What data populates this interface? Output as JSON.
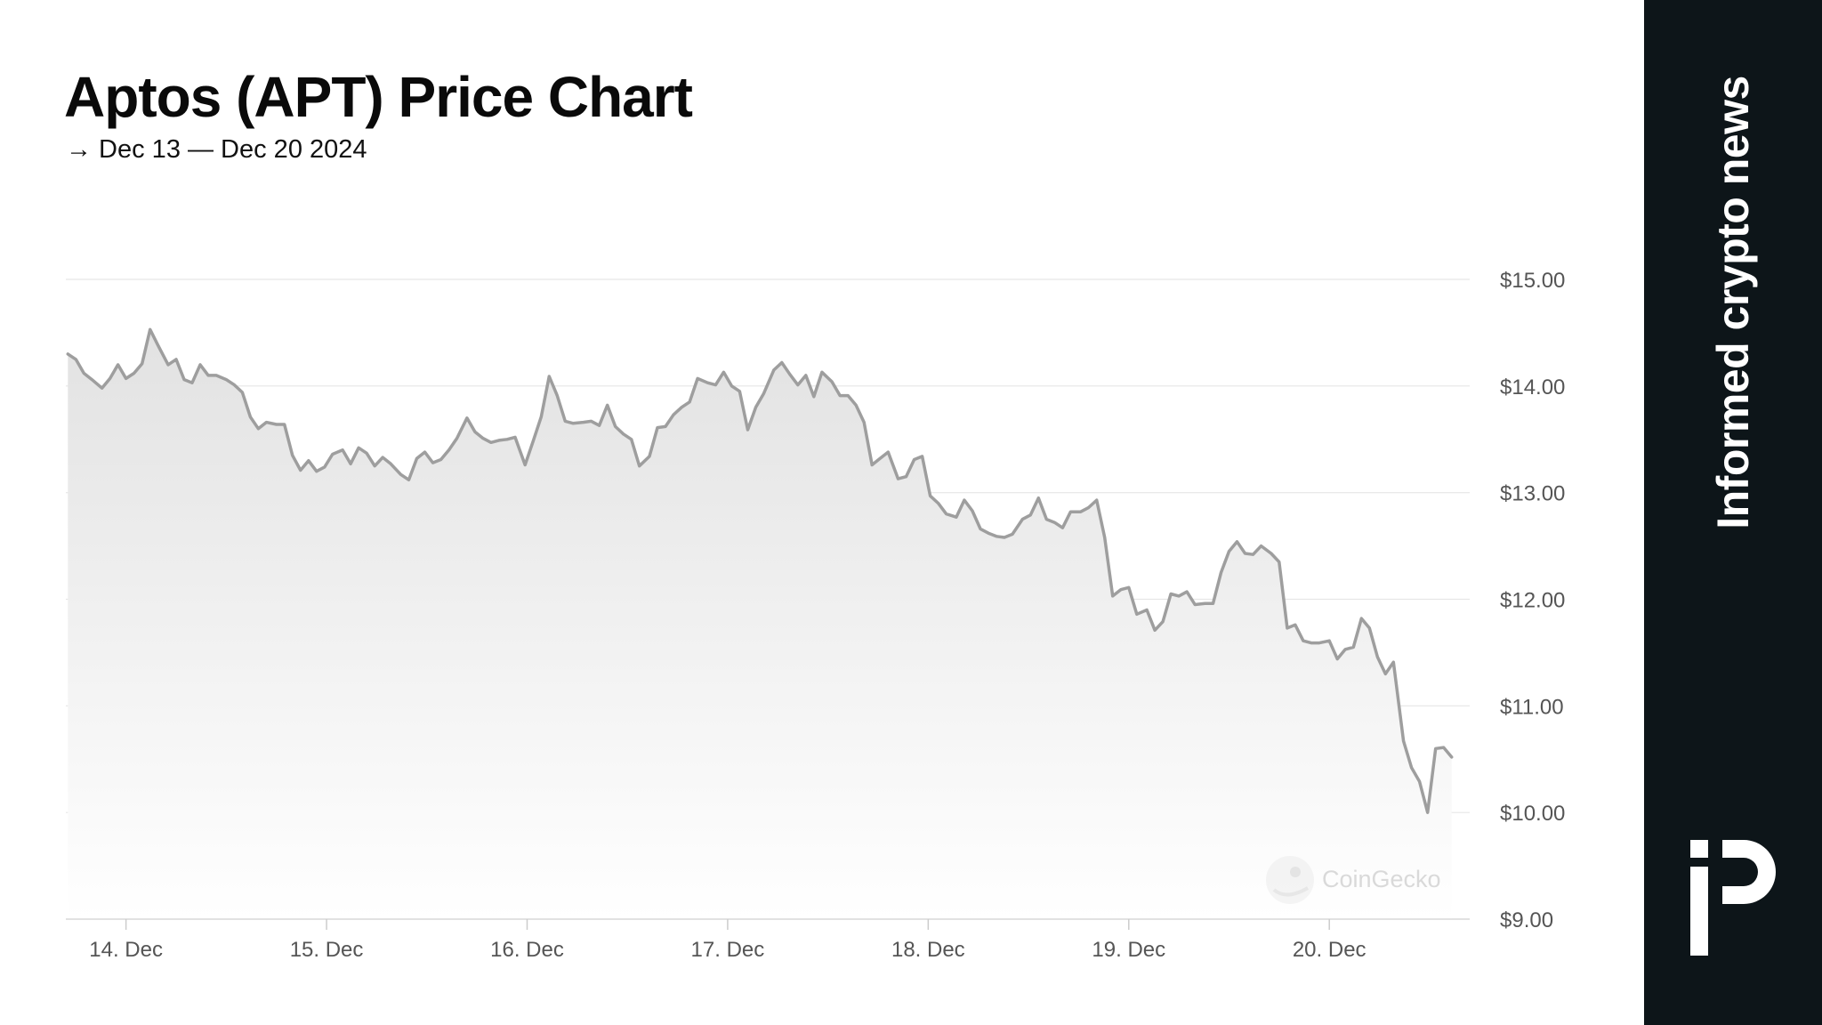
{
  "header": {
    "title": "Aptos (APT) Price Chart",
    "subtitle": "→ Dec 13 — Dec 20 2024"
  },
  "sidebar": {
    "tagline": "Informed crypto news",
    "logo_icon": "brand-monogram-icon"
  },
  "watermark": {
    "text": "CoinGecko",
    "icon": "gecko-icon"
  },
  "colors": {
    "line": "#9e9e9e",
    "grid": "#e6e6e6",
    "sidebar_bg": "#0d1519",
    "axis_text": "#555555"
  },
  "chart_data": {
    "type": "area",
    "title": "Aptos (APT) Price Chart",
    "xlabel": "",
    "ylabel": "",
    "x_range": [
      13.7,
      20.7
    ],
    "ylim": [
      9.0,
      15.0
    ],
    "grid": true,
    "legend": "none",
    "x_ticks": [
      {
        "value": 14,
        "label": "14. Dec"
      },
      {
        "value": 15,
        "label": "15. Dec"
      },
      {
        "value": 16,
        "label": "16. Dec"
      },
      {
        "value": 17,
        "label": "17. Dec"
      },
      {
        "value": 18,
        "label": "18. Dec"
      },
      {
        "value": 19,
        "label": "19. Dec"
      },
      {
        "value": 20,
        "label": "20. Dec"
      }
    ],
    "y_ticks": [
      {
        "value": 15,
        "label": "$15.00"
      },
      {
        "value": 14,
        "label": "$14.00"
      },
      {
        "value": 13,
        "label": "$13.00"
      },
      {
        "value": 12,
        "label": "$12.00"
      },
      {
        "value": 11,
        "label": "$11.00"
      },
      {
        "value": 10,
        "label": "$10.00"
      },
      {
        "value": 9,
        "label": "$9.00"
      }
    ],
    "series": [
      {
        "values": [
          [
            13.71,
            14.3
          ],
          [
            13.75,
            14.25
          ],
          [
            13.79,
            14.12
          ],
          [
            13.83,
            14.06
          ],
          [
            13.88,
            13.98
          ],
          [
            13.92,
            14.07
          ],
          [
            13.96,
            14.2
          ],
          [
            14.0,
            14.07
          ],
          [
            14.04,
            14.12
          ],
          [
            14.08,
            14.21
          ],
          [
            14.12,
            14.53
          ],
          [
            14.16,
            14.38
          ],
          [
            14.21,
            14.2
          ],
          [
            14.25,
            14.25
          ],
          [
            14.29,
            14.06
          ],
          [
            14.33,
            14.03
          ],
          [
            14.37,
            14.2
          ],
          [
            14.41,
            14.1
          ],
          [
            14.45,
            14.1
          ],
          [
            14.5,
            14.06
          ],
          [
            14.54,
            14.01
          ],
          [
            14.58,
            13.94
          ],
          [
            14.62,
            13.71
          ],
          [
            14.66,
            13.6
          ],
          [
            14.7,
            13.66
          ],
          [
            14.75,
            13.64
          ],
          [
            14.79,
            13.64
          ],
          [
            14.83,
            13.35
          ],
          [
            14.87,
            13.21
          ],
          [
            14.91,
            13.3
          ],
          [
            14.95,
            13.2
          ],
          [
            14.99,
            13.24
          ],
          [
            15.03,
            13.36
          ],
          [
            15.08,
            13.4
          ],
          [
            15.12,
            13.27
          ],
          [
            15.16,
            13.42
          ],
          [
            15.2,
            13.37
          ],
          [
            15.24,
            13.25
          ],
          [
            15.28,
            13.33
          ],
          [
            15.32,
            13.27
          ],
          [
            15.37,
            13.17
          ],
          [
            15.41,
            13.12
          ],
          [
            15.45,
            13.32
          ],
          [
            15.49,
            13.38
          ],
          [
            15.53,
            13.28
          ],
          [
            15.57,
            13.31
          ],
          [
            15.61,
            13.4
          ],
          [
            15.65,
            13.51
          ],
          [
            15.7,
            13.7
          ],
          [
            15.74,
            13.57
          ],
          [
            15.78,
            13.51
          ],
          [
            15.82,
            13.47
          ],
          [
            15.86,
            13.49
          ],
          [
            15.9,
            13.5
          ],
          [
            15.94,
            13.52
          ],
          [
            15.99,
            13.26
          ],
          [
            16.03,
            13.48
          ],
          [
            16.07,
            13.71
          ],
          [
            16.11,
            14.09
          ],
          [
            16.15,
            13.91
          ],
          [
            16.19,
            13.67
          ],
          [
            16.23,
            13.65
          ],
          [
            16.28,
            13.66
          ],
          [
            16.32,
            13.67
          ],
          [
            16.36,
            13.63
          ],
          [
            16.4,
            13.82
          ],
          [
            16.44,
            13.62
          ],
          [
            16.48,
            13.55
          ],
          [
            16.52,
            13.5
          ],
          [
            16.56,
            13.25
          ],
          [
            16.61,
            13.34
          ],
          [
            16.65,
            13.61
          ],
          [
            16.69,
            13.62
          ],
          [
            16.73,
            13.73
          ],
          [
            16.77,
            13.8
          ],
          [
            16.81,
            13.85
          ],
          [
            16.85,
            14.07
          ],
          [
            16.9,
            14.03
          ],
          [
            16.94,
            14.01
          ],
          [
            16.98,
            14.13
          ],
          [
            17.02,
            14.0
          ],
          [
            17.06,
            13.95
          ],
          [
            17.1,
            13.59
          ],
          [
            17.14,
            13.8
          ],
          [
            17.18,
            13.93
          ],
          [
            17.23,
            14.15
          ],
          [
            17.27,
            14.22
          ],
          [
            17.31,
            14.11
          ],
          [
            17.35,
            14.01
          ],
          [
            17.39,
            14.1
          ],
          [
            17.43,
            13.9
          ],
          [
            17.47,
            14.13
          ],
          [
            17.52,
            14.04
          ],
          [
            17.56,
            13.91
          ],
          [
            17.6,
            13.91
          ],
          [
            17.64,
            13.82
          ],
          [
            17.68,
            13.66
          ],
          [
            17.72,
            13.26
          ],
          [
            17.76,
            13.32
          ],
          [
            17.8,
            13.38
          ],
          [
            17.85,
            13.13
          ],
          [
            17.89,
            13.15
          ],
          [
            17.93,
            13.31
          ],
          [
            17.97,
            13.34
          ],
          [
            18.01,
            12.97
          ],
          [
            18.05,
            12.9
          ],
          [
            18.09,
            12.8
          ],
          [
            18.14,
            12.77
          ],
          [
            18.18,
            12.93
          ],
          [
            18.22,
            12.83
          ],
          [
            18.26,
            12.66
          ],
          [
            18.3,
            12.62
          ],
          [
            18.34,
            12.59
          ],
          [
            18.38,
            12.58
          ],
          [
            18.42,
            12.61
          ],
          [
            18.47,
            12.75
          ],
          [
            18.51,
            12.79
          ],
          [
            18.55,
            12.95
          ],
          [
            18.59,
            12.75
          ],
          [
            18.63,
            12.72
          ],
          [
            18.67,
            12.67
          ],
          [
            18.71,
            12.82
          ],
          [
            18.76,
            12.82
          ],
          [
            18.8,
            12.86
          ],
          [
            18.84,
            12.93
          ],
          [
            18.88,
            12.58
          ],
          [
            18.92,
            12.03
          ],
          [
            18.96,
            12.09
          ],
          [
            19.0,
            12.11
          ],
          [
            19.04,
            11.86
          ],
          [
            19.09,
            11.9
          ],
          [
            19.13,
            11.71
          ],
          [
            19.17,
            11.79
          ],
          [
            19.21,
            12.05
          ],
          [
            19.25,
            12.03
          ],
          [
            19.29,
            12.07
          ],
          [
            19.33,
            11.95
          ],
          [
            19.38,
            11.96
          ],
          [
            19.42,
            11.96
          ],
          [
            19.46,
            12.25
          ],
          [
            19.5,
            12.45
          ],
          [
            19.54,
            12.54
          ],
          [
            19.58,
            12.43
          ],
          [
            19.62,
            12.42
          ],
          [
            19.66,
            12.5
          ],
          [
            19.71,
            12.43
          ],
          [
            19.75,
            12.35
          ],
          [
            19.79,
            11.73
          ],
          [
            19.83,
            11.76
          ],
          [
            19.87,
            11.61
          ],
          [
            19.91,
            11.59
          ],
          [
            19.95,
            11.59
          ],
          [
            20.0,
            11.61
          ],
          [
            20.04,
            11.44
          ],
          [
            20.08,
            11.53
          ],
          [
            20.12,
            11.55
          ],
          [
            20.16,
            11.82
          ],
          [
            20.2,
            11.73
          ],
          [
            20.24,
            11.46
          ],
          [
            20.28,
            11.3
          ],
          [
            20.32,
            11.41
          ],
          [
            20.37,
            10.67
          ],
          [
            20.41,
            10.42
          ],
          [
            20.45,
            10.29
          ],
          [
            20.49,
            10.0
          ],
          [
            20.53,
            10.6
          ],
          [
            20.57,
            10.61
          ],
          [
            20.61,
            10.52
          ]
        ]
      }
    ]
  }
}
